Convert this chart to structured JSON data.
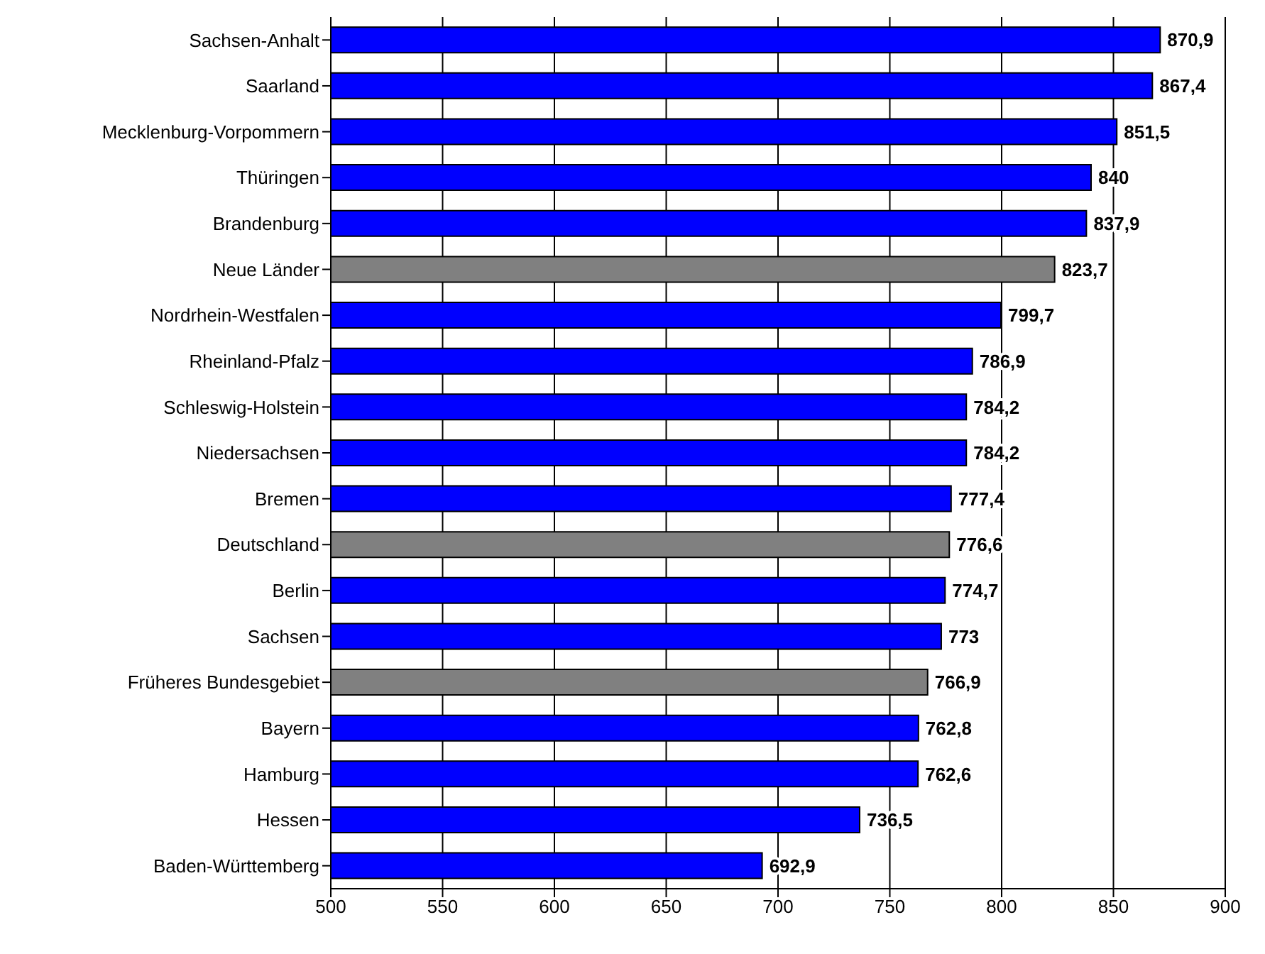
{
  "chart_data": {
    "type": "bar",
    "orientation": "horizontal",
    "categories": [
      "Sachsen-Anhalt",
      "Saarland",
      "Mecklenburg-Vorpommern",
      "Thüringen",
      "Brandenburg",
      "Neue Länder",
      "Nordrhein-Westfalen",
      "Rheinland-Pfalz",
      "Schleswig-Holstein",
      "Niedersachsen",
      "Bremen",
      "Deutschland",
      "Berlin",
      "Sachsen",
      "Früheres Bundesgebiet",
      "Bayern",
      "Hamburg",
      "Hessen",
      "Baden-Württemberg"
    ],
    "values": [
      870.9,
      867.4,
      851.5,
      840,
      837.9,
      823.7,
      799.7,
      786.9,
      784.2,
      784.2,
      777.4,
      776.6,
      774.7,
      773,
      766.9,
      762.8,
      762.6,
      736.5,
      692.9
    ],
    "colors": [
      "#0000ff",
      "#0000ff",
      "#0000ff",
      "#0000ff",
      "#0000ff",
      "#808080",
      "#0000ff",
      "#0000ff",
      "#0000ff",
      "#0000ff",
      "#0000ff",
      "#808080",
      "#0000ff",
      "#0000ff",
      "#808080",
      "#0000ff",
      "#0000ff",
      "#0000ff",
      "#0000ff"
    ],
    "xlim": [
      500,
      900
    ],
    "xticks": [
      500,
      550,
      600,
      650,
      700,
      750,
      800,
      850,
      900
    ],
    "value_labels": [
      "870,9",
      "867,4",
      "851,5",
      "840",
      "837,9",
      "823,7",
      "799,7",
      "786,9",
      "784,2",
      "784,2",
      "777,4",
      "776,6",
      "774,7",
      "773",
      "766,9",
      "762,8",
      "762,6",
      "736,5",
      "692,9"
    ],
    "grid": "x"
  }
}
